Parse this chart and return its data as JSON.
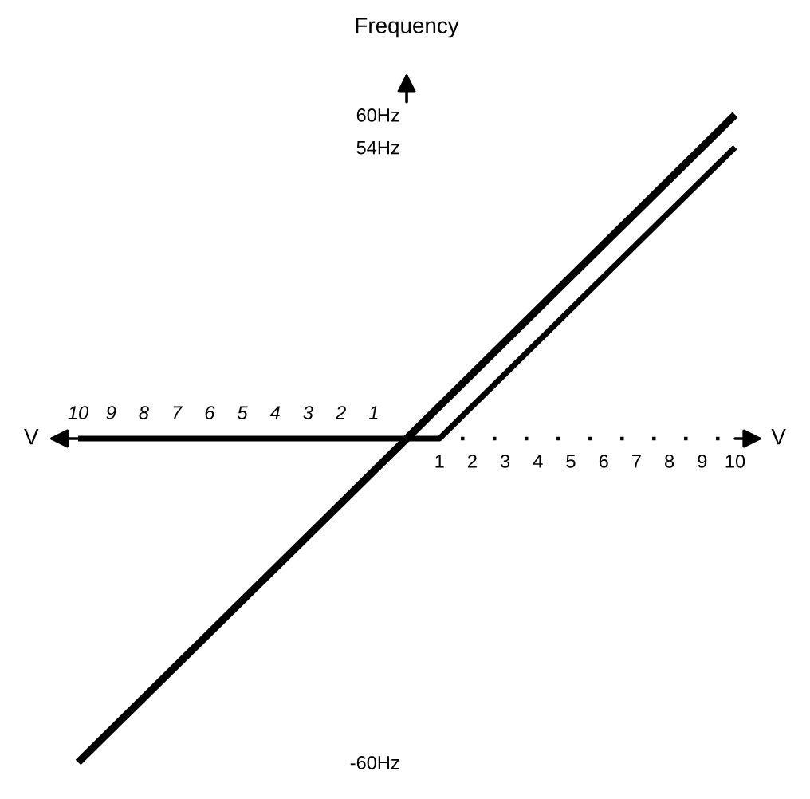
{
  "chart_data": {
    "type": "line",
    "ylabel": "Frequency",
    "xlabel": "V",
    "series": [
      {
        "color": "#000000",
        "x": [
          -10,
          10
        ],
        "values": [
          -60,
          60
        ]
      },
      {
        "color": "#000000",
        "x": [
          -10,
          1,
          10
        ],
        "values": [
          0,
          0,
          54
        ]
      }
    ],
    "xlim": [
      -10,
      10
    ],
    "ylim": [
      -60,
      60
    ],
    "x2lim": [
      -10,
      10
    ],
    "xticks": [
      {
        "value": -10,
        "label": "10"
      },
      {
        "value": -9,
        "label": "9"
      },
      {
        "value": -8,
        "label": "8"
      },
      {
        "value": -7,
        "label": "7"
      },
      {
        "value": -6,
        "label": "6"
      },
      {
        "value": -5,
        "label": "5"
      },
      {
        "value": -4,
        "label": "4"
      },
      {
        "value": -3,
        "label": "3"
      },
      {
        "value": -2,
        "label": "2"
      },
      {
        "value": -1,
        "label": "1"
      }
    ],
    "x2ticks": [
      1,
      2,
      3,
      4,
      5,
      6,
      7,
      8,
      9,
      10
    ],
    "yticks": [
      {
        "value": -60,
        "label": "-60Hz"
      },
      {
        "value": 54,
        "label": "54Hz"
      },
      {
        "value": 60,
        "label": "60Hz"
      }
    ],
    "ref_lines": [
      {
        "axis": "y",
        "value": 0,
        "color": "#000000",
        "line_style": "dotted"
      }
    ],
    "marker": "none",
    "line_style": "solid"
  }
}
